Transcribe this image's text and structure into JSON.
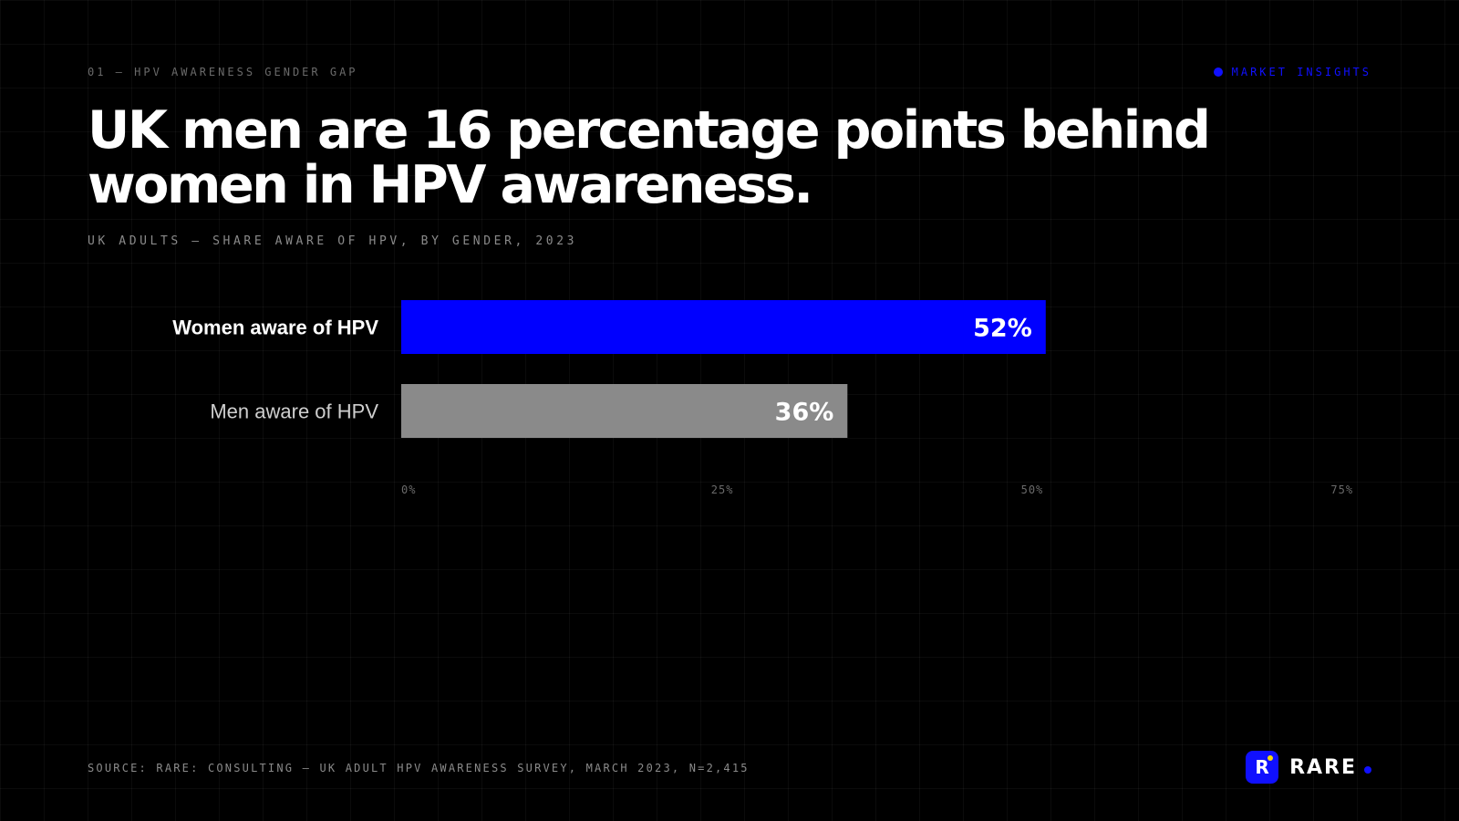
{
  "header": {
    "eyebrow": "01 — HPV AWARENESS GENDER GAP",
    "tag": "MARKET INSIGHTS",
    "headline": "UK men are 16 percentage points behind women in HPV awareness.",
    "subtitle": "UK ADULTS — SHARE AWARE OF HPV, BY GENDER, 2023"
  },
  "chart_data": {
    "type": "bar",
    "orientation": "horizontal",
    "title": "UK men are 16 percentage points behind women in HPV awareness.",
    "subtitle": "UK ADULTS — SHARE AWARE OF HPV, BY GENDER, 2023",
    "categories": [
      "Women aware of HPV",
      "Men aware of HPV"
    ],
    "values": [
      52,
      36
    ],
    "value_labels": [
      "52%",
      "36%"
    ],
    "bar_colors": [
      "#0000ff",
      "#8a8a8a"
    ],
    "label_colors": [
      "#ffffff",
      "#cfcfcf"
    ],
    "xlim": [
      0,
      76
    ],
    "x_ticks": [
      0,
      25,
      50,
      75
    ],
    "x_tick_labels": [
      "0%",
      "25%",
      "50%",
      "75%"
    ],
    "xlabel": "",
    "ylabel": "",
    "grid": true,
    "legend": "none"
  },
  "footer": {
    "source": "SOURCE: RARE: CONSULTING — UK ADULT HPV AWARENESS SURVEY, MARCH 2023, N=2,415",
    "brand_mark": "R",
    "brand_name": "RARE"
  },
  "colors": {
    "accent": "#0000ff",
    "background": "#000000",
    "muted_bar": "#8a8a8a"
  },
  "icons": {
    "tag_dot": "dot-icon",
    "logo": "rare-logo-icon"
  }
}
